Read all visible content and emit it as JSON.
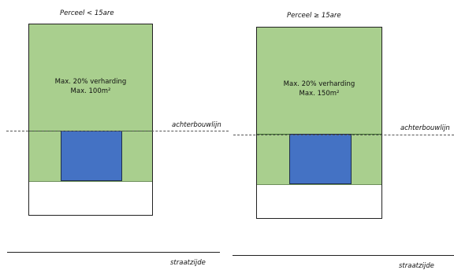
{
  "left": {
    "title": "Perceel < 15are",
    "note_line1": "Max. 20% verharding",
    "note_line2": "Max. 100m²",
    "rear_line_label": "achterbouwlijn",
    "street_label": "straatzijde"
  },
  "right": {
    "title": "Perceel ≥ 15are",
    "note_line1": "Max. 20% verharding",
    "note_line2": "Max. 150m²",
    "rear_line_label": "achterbouwlijn",
    "street_label": "straatzijde"
  },
  "colors": {
    "garden_green": "#a9cf8e",
    "house_blue": "#4472c4",
    "outline": "#222222"
  }
}
